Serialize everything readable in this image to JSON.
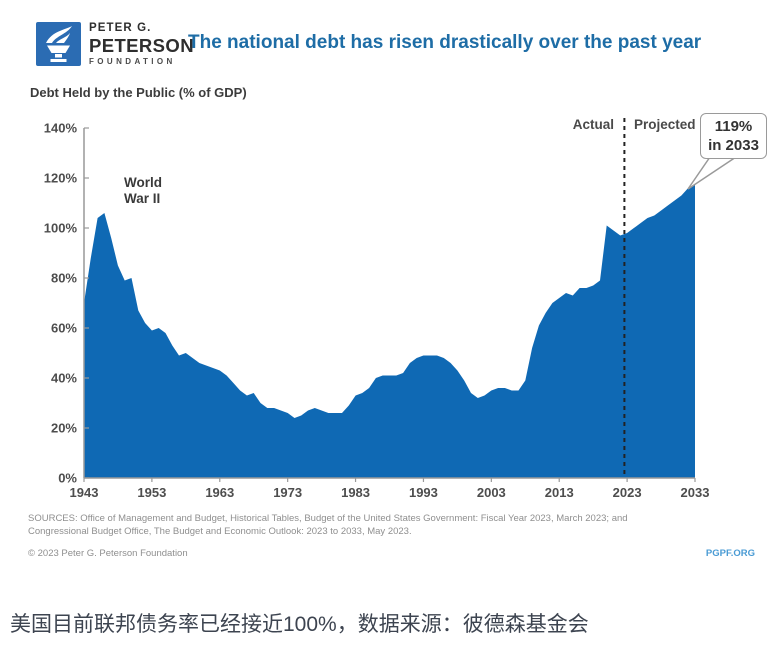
{
  "header": {
    "logo_line1": "PETER G.",
    "logo_line2": "PETERSON",
    "logo_line3": "FOUNDATION",
    "title": "The national debt has risen drastically over the past year"
  },
  "chart": {
    "subtitle": "Debt Held by the Public (% of GDP)",
    "labels": {
      "wwii_line1": "World",
      "wwii_line2": "War II",
      "actual": "Actual",
      "projected": "Projected",
      "callout_line1": "119%",
      "callout_line2": "in 2033"
    }
  },
  "chart_data": {
    "type": "area",
    "title": "Debt Held by the Public (% of GDP)",
    "series_name": "Debt Held by the Public (% of GDP)",
    "x": [
      1943,
      1944,
      1945,
      1946,
      1947,
      1948,
      1949,
      1950,
      1951,
      1952,
      1953,
      1954,
      1955,
      1956,
      1957,
      1958,
      1959,
      1960,
      1961,
      1962,
      1963,
      1964,
      1965,
      1966,
      1967,
      1968,
      1969,
      1970,
      1971,
      1972,
      1973,
      1974,
      1975,
      1976,
      1977,
      1978,
      1979,
      1980,
      1981,
      1982,
      1983,
      1984,
      1985,
      1986,
      1987,
      1988,
      1989,
      1990,
      1991,
      1992,
      1993,
      1994,
      1995,
      1996,
      1997,
      1998,
      1999,
      2000,
      2001,
      2002,
      2003,
      2004,
      2005,
      2006,
      2007,
      2008,
      2009,
      2010,
      2011,
      2012,
      2013,
      2014,
      2015,
      2016,
      2017,
      2018,
      2019,
      2020,
      2021,
      2022,
      2023,
      2024,
      2025,
      2026,
      2027,
      2028,
      2029,
      2030,
      2031,
      2032,
      2033
    ],
    "values": [
      70,
      88,
      104,
      106,
      96,
      85,
      79,
      80,
      67,
      62,
      59,
      60,
      58,
      53,
      49,
      50,
      48,
      46,
      45,
      44,
      43,
      41,
      38,
      35,
      33,
      34,
      30,
      28,
      28,
      27,
      26,
      24,
      25,
      27,
      28,
      27,
      26,
      26,
      26,
      29,
      33,
      34,
      36,
      40,
      41,
      41,
      41,
      42,
      46,
      48,
      49,
      49,
      49,
      48,
      46,
      43,
      39,
      34,
      32,
      33,
      35,
      36,
      36,
      35,
      35,
      39,
      52,
      61,
      66,
      70,
      72,
      74,
      73,
      76,
      76,
      77,
      79,
      101,
      99,
      97,
      98,
      100,
      102,
      104,
      105,
      107,
      109,
      111,
      113,
      116,
      119
    ],
    "xlim": [
      1943,
      2033
    ],
    "ylim": [
      0,
      140
    ],
    "xticks": [
      1943,
      1953,
      1963,
      1973,
      1983,
      1993,
      2003,
      2013,
      2023,
      2033
    ],
    "yticks": [
      0,
      20,
      40,
      60,
      80,
      100,
      120,
      140
    ],
    "ytick_suffix": "%",
    "xlabel": "",
    "ylabel": "Debt Held by the Public (% of GDP)",
    "grid": "off",
    "legend": "none",
    "divider_year": 2022.6,
    "annotations": [
      "World War II",
      "Actual",
      "Projected",
      "119% in 2033"
    ],
    "colors": {
      "area": "#0f69b4",
      "axis": "#999999",
      "divider": "#222222"
    }
  },
  "footer": {
    "sources_line1": "SOURCES: Office of Management and Budget, Historical Tables, Budget of the United States Government: Fiscal Year 2023, March 2023; and",
    "sources_line2": "Congressional Budget Office, The Budget and Economic Outlook: 2023 to 2033, May 2023.",
    "copyright": "© 2023 Peter G. Peterson Foundation",
    "site": "PGPF.ORG"
  },
  "caption": "美国目前联邦债务率已经接近100%，数据来源：彼德森基金会"
}
